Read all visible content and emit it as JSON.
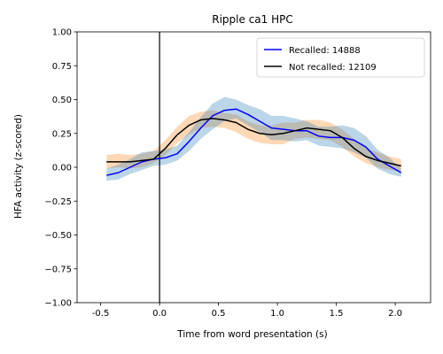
{
  "chart_data": {
    "type": "line",
    "title": "Ripple ca1 HPC",
    "xlabel": "Time from word presentation (s)",
    "ylabel": "HFA activity (z-scored)",
    "xlim": [
      -0.7,
      2.3
    ],
    "ylim": [
      -1.0,
      1.0
    ],
    "xticks": [
      -0.5,
      0.0,
      0.5,
      1.0,
      1.5,
      2.0
    ],
    "xtick_labels": [
      "-0.5",
      "0.0",
      "0.5",
      "1.0",
      "1.5",
      "2.0"
    ],
    "yticks": [
      -1.0,
      -0.75,
      -0.5,
      -0.25,
      0.0,
      0.25,
      0.5,
      0.75,
      1.0
    ],
    "ytick_labels": [
      "−1.00",
      "−0.75",
      "−0.50",
      "−0.25",
      "0.00",
      "0.25",
      "0.50",
      "0.75",
      "1.00"
    ],
    "vline_x": 0.0,
    "grid": false,
    "legend_position": "top-right",
    "x": [
      -0.45,
      -0.35,
      -0.25,
      -0.15,
      -0.05,
      0.05,
      0.15,
      0.25,
      0.35,
      0.45,
      0.55,
      0.65,
      0.75,
      0.85,
      0.95,
      1.05,
      1.15,
      1.25,
      1.35,
      1.45,
      1.55,
      1.65,
      1.75,
      1.85,
      1.95,
      2.05
    ],
    "series": [
      {
        "name": "Recalled: 14888",
        "color": "#0000ff",
        "band_color": "#1f77b4",
        "values": [
          -0.06,
          -0.04,
          0.0,
          0.04,
          0.06,
          0.07,
          0.1,
          0.19,
          0.29,
          0.38,
          0.42,
          0.43,
          0.39,
          0.34,
          0.29,
          0.28,
          0.27,
          0.27,
          0.23,
          0.22,
          0.22,
          0.2,
          0.15,
          0.06,
          0.01,
          -0.04
        ],
        "lower": [
          -0.1,
          -0.09,
          -0.05,
          -0.02,
          0.01,
          0.02,
          0.05,
          0.12,
          0.21,
          0.28,
          0.34,
          0.36,
          0.31,
          0.26,
          0.2,
          0.2,
          0.19,
          0.2,
          0.16,
          0.15,
          0.14,
          0.11,
          0.07,
          -0.01,
          -0.05,
          -0.07
        ],
        "upper": [
          -0.01,
          0.02,
          0.06,
          0.11,
          0.12,
          0.13,
          0.16,
          0.26,
          0.37,
          0.47,
          0.52,
          0.5,
          0.46,
          0.43,
          0.38,
          0.38,
          0.36,
          0.34,
          0.3,
          0.3,
          0.31,
          0.29,
          0.23,
          0.13,
          0.07,
          -0.01
        ]
      },
      {
        "name": "Not recalled: 12109",
        "color": "#000000",
        "band_color": "#ff7f0e",
        "values": [
          0.04,
          0.04,
          0.04,
          0.05,
          0.06,
          0.14,
          0.24,
          0.31,
          0.35,
          0.36,
          0.35,
          0.33,
          0.28,
          0.25,
          0.24,
          0.25,
          0.27,
          0.29,
          0.28,
          0.27,
          0.22,
          0.14,
          0.08,
          0.05,
          0.03,
          0.01
        ],
        "lower": [
          -0.01,
          0.0,
          -0.01,
          0.0,
          0.03,
          0.09,
          0.18,
          0.24,
          0.29,
          0.3,
          0.29,
          0.26,
          0.21,
          0.18,
          0.17,
          0.17,
          0.21,
          0.22,
          0.21,
          0.2,
          0.15,
          0.08,
          0.03,
          0.0,
          -0.02,
          -0.03
        ],
        "upper": [
          0.09,
          0.1,
          0.09,
          0.1,
          0.12,
          0.2,
          0.3,
          0.38,
          0.41,
          0.42,
          0.4,
          0.39,
          0.34,
          0.31,
          0.31,
          0.33,
          0.33,
          0.35,
          0.35,
          0.33,
          0.28,
          0.21,
          0.14,
          0.11,
          0.08,
          0.06
        ]
      }
    ]
  }
}
